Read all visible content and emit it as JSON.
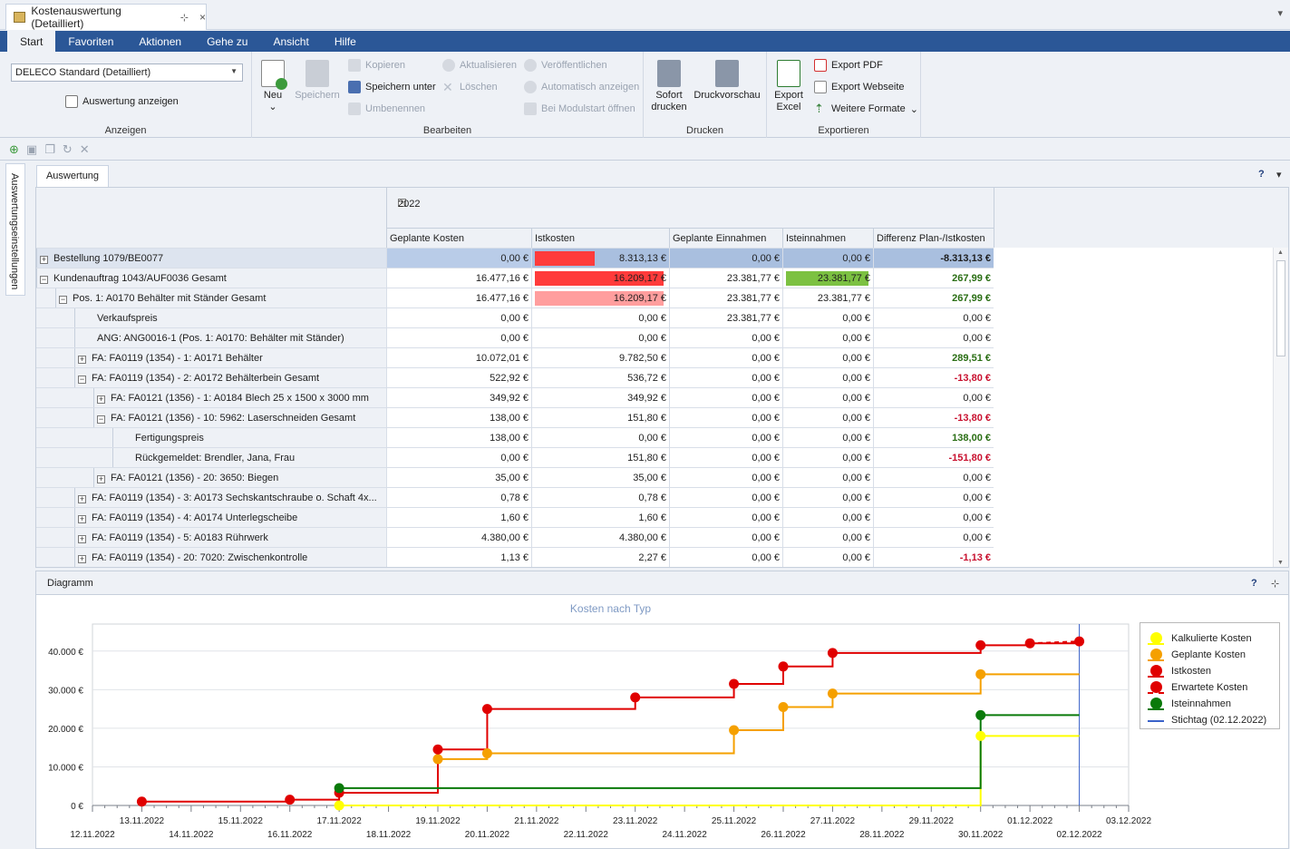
{
  "window": {
    "tab_title": "Kostenauswertung (Detailliert)",
    "pin_glyph": "⊹",
    "close_glyph": "×",
    "chevron_glyph": "▾"
  },
  "ribbon": {
    "tabs": [
      "Start",
      "Favoriten",
      "Aktionen",
      "Gehe zu",
      "Ansicht",
      "Hilfe"
    ],
    "active_tab": "Start",
    "anzeigen": {
      "layout_value": "DELECO Standard (Detailliert)",
      "show_button": "Auswertung anzeigen",
      "group_label": "Anzeigen"
    },
    "bearbeiten": {
      "neu": "Neu",
      "speichern": "Speichern",
      "kopieren": "Kopieren",
      "speichern_unter": "Speichern unter",
      "umbenennen": "Umbenennen",
      "aktualisieren": "Aktualisieren",
      "loeschen": "Löschen",
      "veroeffentlichen": "Veröffentlichen",
      "automatisch_anzeigen": "Automatisch anzeigen",
      "bei_modulstart": "Bei Modulstart öffnen",
      "group_label": "Bearbeiten"
    },
    "drucken": {
      "sofort_drucken": "Sofort drucken",
      "druckvorschau": "Druckvorschau",
      "group_label": "Drucken"
    },
    "exportieren": {
      "export_excel": "Export Excel",
      "export_pdf": "Export PDF",
      "export_webseite": "Export Webseite",
      "weitere_formate": "Weitere Formate",
      "group_label": "Exportieren"
    }
  },
  "side_panel": {
    "label": "Auswertungseinstellungen"
  },
  "pivot": {
    "tab": "Auswertung",
    "help_glyph": "?",
    "year": "2022",
    "columns": [
      "Geplante Kosten",
      "Istkosten",
      "Geplante Einnahmen",
      "Isteinnahmen",
      "Differenz Plan-/Istkosten"
    ],
    "rows": [
      {
        "level": 0,
        "expander": "+",
        "label": "Bestellung 1079/BE0077",
        "values": [
          "0,00 €",
          "8.313,13 €",
          "0,00 €",
          "0,00 €",
          "-8.313,13 €"
        ],
        "diff_style": "bold",
        "selected": true,
        "ist_bar": 0.45,
        "ist_bar_color": "#ff3b3b"
      },
      {
        "level": 0,
        "expander": "−",
        "label": "Kundenauftrag 1043/AUF0036 Gesamt",
        "values": [
          "16.477,16 €",
          "16.209,17 €",
          "23.381,77 €",
          "23.381,77 €",
          "267,99 €"
        ],
        "diff_style": "pos",
        "ist_bar": 0.97,
        "ist_bar_color": "#ff3b3b",
        "isteinn_bar": 0.97,
        "isteinn_bar_color": "#7cc142"
      },
      {
        "level": 1,
        "expander": "−",
        "label": "Pos. 1: A0170 Behälter mit Ständer Gesamt",
        "values": [
          "16.477,16 €",
          "16.209,17 €",
          "23.381,77 €",
          "23.381,77 €",
          "267,99 €"
        ],
        "diff_style": "pos",
        "ist_bar": 0.97,
        "ist_bar_color": "#ff9e9e"
      },
      {
        "level": 2,
        "expander": "",
        "label": "Verkaufspreis",
        "values": [
          "0,00 €",
          "0,00 €",
          "23.381,77 €",
          "0,00 €",
          "0,00 €"
        ],
        "diff_style": ""
      },
      {
        "level": 2,
        "expander": "",
        "label": "ANG: ANG0016-1 (Pos. 1: A0170: Behälter mit Ständer)",
        "values": [
          "0,00 €",
          "0,00 €",
          "0,00 €",
          "0,00 €",
          "0,00 €"
        ],
        "diff_style": ""
      },
      {
        "level": 2,
        "expander": "+",
        "label": "FA: FA0119 (1354) - 1: A0171 Behälter",
        "values": [
          "10.072,01 €",
          "9.782,50 €",
          "0,00 €",
          "0,00 €",
          "289,51 €"
        ],
        "diff_style": "pos"
      },
      {
        "level": 2,
        "expander": "−",
        "label": "FA: FA0119 (1354) - 2: A0172 Behälterbein  Gesamt",
        "values": [
          "522,92 €",
          "536,72 €",
          "0,00 €",
          "0,00 €",
          "-13,80 €"
        ],
        "diff_style": "neg"
      },
      {
        "level": 3,
        "expander": "+",
        "label": "FA: FA0121 (1356) - 1: A0184 Blech 25 x 1500 x 3000 mm",
        "values": [
          "349,92 €",
          "349,92 €",
          "0,00 €",
          "0,00 €",
          "0,00 €"
        ],
        "diff_style": ""
      },
      {
        "level": 3,
        "expander": "−",
        "label": "FA: FA0121 (1356) - 10: 5962: Laserschneiden Gesamt",
        "values": [
          "138,00 €",
          "151,80 €",
          "0,00 €",
          "0,00 €",
          "-13,80 €"
        ],
        "diff_style": "neg"
      },
      {
        "level": 4,
        "expander": "",
        "label": "Fertigungspreis",
        "values": [
          "138,00 €",
          "0,00 €",
          "0,00 €",
          "0,00 €",
          "138,00 €"
        ],
        "diff_style": "pos"
      },
      {
        "level": 4,
        "expander": "",
        "label": "Rückgemeldet: Brendler, Jana, Frau",
        "values": [
          "0,00 €",
          "151,80 €",
          "0,00 €",
          "0,00 €",
          "-151,80 €"
        ],
        "diff_style": "neg"
      },
      {
        "level": 3,
        "expander": "+",
        "label": "FA: FA0121 (1356) - 20: 3650: Biegen",
        "values": [
          "35,00 €",
          "35,00 €",
          "0,00 €",
          "0,00 €",
          "0,00 €"
        ],
        "diff_style": ""
      },
      {
        "level": 2,
        "expander": "+",
        "label": "FA: FA0119 (1354) - 3: A0173 Sechskantschraube o. Schaft 4x...",
        "values": [
          "0,78 €",
          "0,78 €",
          "0,00 €",
          "0,00 €",
          "0,00 €"
        ],
        "diff_style": ""
      },
      {
        "level": 2,
        "expander": "+",
        "label": "FA: FA0119 (1354) - 4: A0174 Unterlegscheibe",
        "values": [
          "1,60 €",
          "1,60 €",
          "0,00 €",
          "0,00 €",
          "0,00 €"
        ],
        "diff_style": ""
      },
      {
        "level": 2,
        "expander": "+",
        "label": "FA: FA0119 (1354) - 5: A0183 Rührwerk",
        "values": [
          "4.380,00 €",
          "4.380,00 €",
          "0,00 €",
          "0,00 €",
          "0,00 €"
        ],
        "diff_style": ""
      },
      {
        "level": 2,
        "expander": "+",
        "label": "FA: FA0119 (1354) - 20: 7020: Zwischenkontrolle",
        "values": [
          "1,13 €",
          "2,27 €",
          "0,00 €",
          "0,00 €",
          "-1,13 €"
        ],
        "diff_style": "neg"
      }
    ]
  },
  "diagram": {
    "panel_title": "Diagramm",
    "help_glyph": "?",
    "pin_glyph": "⊹"
  },
  "chart_data": {
    "type": "line",
    "title": "Kosten nach Typ",
    "step": true,
    "x_range": [
      "2022-11-12",
      "2022-12-03"
    ],
    "ylim": [
      0,
      47000
    ],
    "y_ticks": [
      0,
      10000,
      20000,
      30000,
      40000
    ],
    "y_tick_labels": [
      "0 €",
      "10.000 €",
      "20.000 €",
      "30.000 €",
      "40.000 €"
    ],
    "x_tick_labels_upper": [
      "13.11.2022",
      "15.11.2022",
      "17.11.2022",
      "19.11.2022",
      "21.11.2022",
      "23.11.2022",
      "25.11.2022",
      "27.11.2022",
      "29.11.2022",
      "01.12.2022",
      "03.12.2022"
    ],
    "x_tick_labels_lower": [
      "12.11.2022",
      "14.11.2022",
      "16.11.2022",
      "18.11.2022",
      "20.11.2022",
      "22.11.2022",
      "24.11.2022",
      "26.11.2022",
      "28.11.2022",
      "30.11.2022",
      "02.12.2022"
    ],
    "legend_position": "right",
    "stichtag": {
      "name": "Stichtag (02.12.2022)",
      "date": "2022-12-02",
      "color": "#3a62c9"
    },
    "series": [
      {
        "name": "Kalkulierte Kosten",
        "color": "#ffff00",
        "line_end": "2022-12-02",
        "points": [
          [
            "2022-11-17",
            0
          ],
          [
            "2022-11-30",
            18000
          ]
        ]
      },
      {
        "name": "Geplante Kosten",
        "color": "#f5a000",
        "line_end": "2022-12-02",
        "points": [
          [
            "2022-11-19",
            12000
          ],
          [
            "2022-11-20",
            13500
          ],
          [
            "2022-11-25",
            19500
          ],
          [
            "2022-11-26",
            25500
          ],
          [
            "2022-11-27",
            29000
          ],
          [
            "2022-11-30",
            34000
          ]
        ]
      },
      {
        "name": "Istkosten",
        "color": "#e00000",
        "line_end": "2022-12-02",
        "points": [
          [
            "2022-11-13",
            1000
          ],
          [
            "2022-11-16",
            1500
          ],
          [
            "2022-11-17",
            3300
          ],
          [
            "2022-11-19",
            14500
          ],
          [
            "2022-11-20",
            25000
          ],
          [
            "2022-11-23",
            28000
          ],
          [
            "2022-11-25",
            31500
          ],
          [
            "2022-11-26",
            36000
          ],
          [
            "2022-11-27",
            39500
          ],
          [
            "2022-11-30",
            41500
          ],
          [
            "2022-12-01",
            42000
          ]
        ]
      },
      {
        "name": "Erwartete Kosten",
        "color": "#e00000",
        "dashed": true,
        "points": [
          [
            "2022-12-01",
            42000
          ],
          [
            "2022-12-02",
            42500
          ]
        ]
      },
      {
        "name": "Isteinnahmen",
        "color": "#0a7a0a",
        "line_end": "2022-12-02",
        "points": [
          [
            "2022-11-17",
            4500
          ],
          [
            "2022-11-30",
            23400
          ]
        ]
      }
    ]
  }
}
